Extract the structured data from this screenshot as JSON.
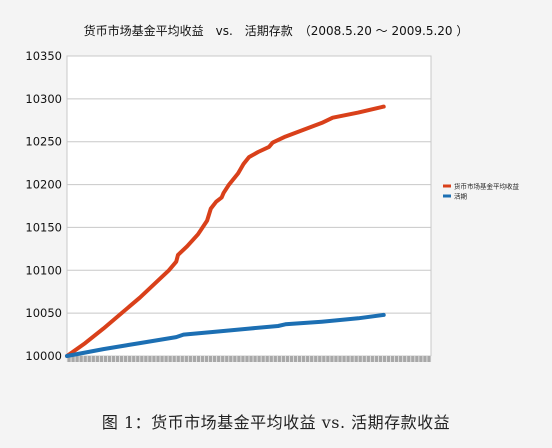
{
  "chart_data": {
    "type": "line",
    "title": "货币市场基金平均收益　vs.　活期存款　（2008.5.20 ～ 2009.5.20 ）",
    "xlabel": "",
    "ylabel": "",
    "ylim": [
      10000,
      10350
    ],
    "yticks": [
      10000,
      10050,
      10100,
      10150,
      10200,
      10250,
      10300,
      10350
    ],
    "grid": "horizontal",
    "legend_position": "right",
    "x_range": [
      0,
      1
    ],
    "series": [
      {
        "name": "货币市场基金平均收益",
        "color": "#d9401a",
        "points": [
          [
            0.0,
            10000
          ],
          [
            0.05,
            10015
          ],
          [
            0.1,
            10032
          ],
          [
            0.15,
            10050
          ],
          [
            0.2,
            10068
          ],
          [
            0.25,
            10088
          ],
          [
            0.28,
            10100
          ],
          [
            0.3,
            10110
          ],
          [
            0.305,
            10118
          ],
          [
            0.33,
            10128
          ],
          [
            0.36,
            10142
          ],
          [
            0.385,
            10158
          ],
          [
            0.395,
            10172
          ],
          [
            0.41,
            10180
          ],
          [
            0.425,
            10185
          ],
          [
            0.43,
            10190
          ],
          [
            0.445,
            10200
          ],
          [
            0.47,
            10213
          ],
          [
            0.485,
            10224
          ],
          [
            0.5,
            10232
          ],
          [
            0.525,
            10238
          ],
          [
            0.555,
            10244
          ],
          [
            0.565,
            10249
          ],
          [
            0.6,
            10256
          ],
          [
            0.65,
            10264
          ],
          [
            0.7,
            10272
          ],
          [
            0.73,
            10278
          ],
          [
            0.8,
            10284
          ],
          [
            0.85,
            10289
          ],
          [
            0.87,
            10291
          ]
        ]
      },
      {
        "name": "活期",
        "color": "#1c6fb3",
        "points": [
          [
            0.0,
            10000
          ],
          [
            0.1,
            10008
          ],
          [
            0.2,
            10015
          ],
          [
            0.3,
            10022
          ],
          [
            0.32,
            10025
          ],
          [
            0.4,
            10028
          ],
          [
            0.5,
            10032
          ],
          [
            0.58,
            10035
          ],
          [
            0.6,
            10037
          ],
          [
            0.7,
            10040
          ],
          [
            0.8,
            10044
          ],
          [
            0.87,
            10048
          ]
        ]
      }
    ]
  },
  "caption": "图 1：货币市场基金平均收益 vs. 活期存款收益"
}
